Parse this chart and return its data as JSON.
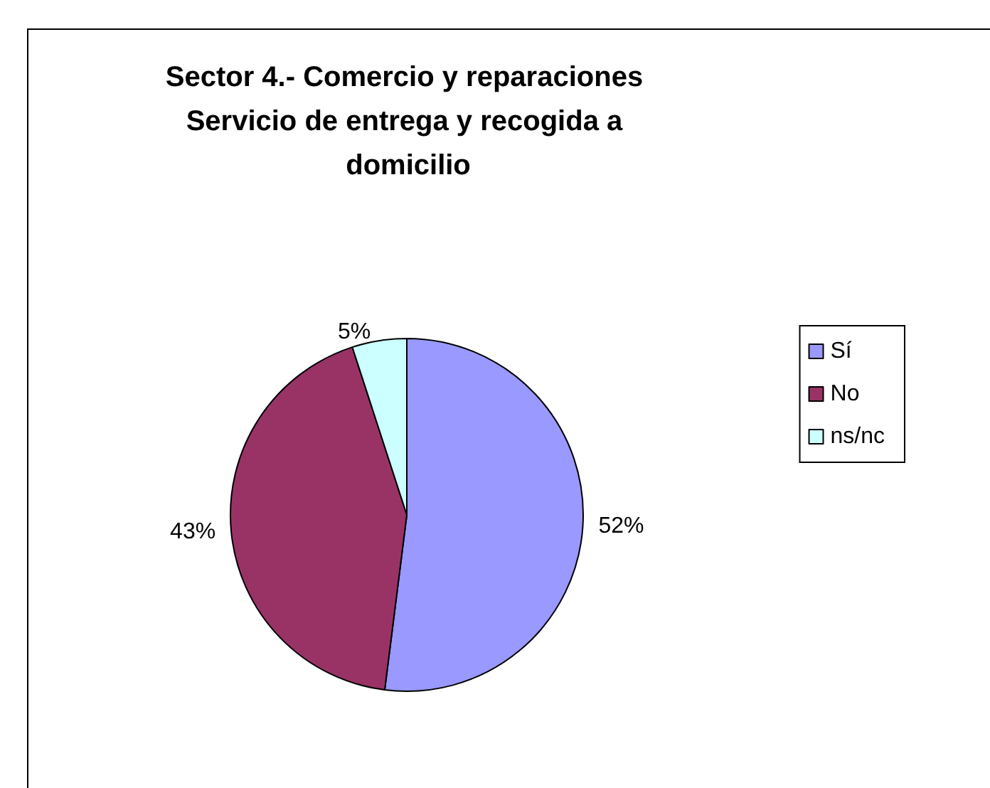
{
  "chart_data": {
    "type": "pie",
    "title": "Sector 4.- Comercio y reparaciones Servicio de entrega y recogida a domicilio",
    "categories": [
      "Sí",
      "No",
      "ns/nc"
    ],
    "values": [
      52,
      43,
      5
    ],
    "value_labels": [
      "52%",
      "43%",
      "5%"
    ],
    "colors": [
      "#9999ff",
      "#993366",
      "#ccffff"
    ],
    "legend": "right"
  }
}
